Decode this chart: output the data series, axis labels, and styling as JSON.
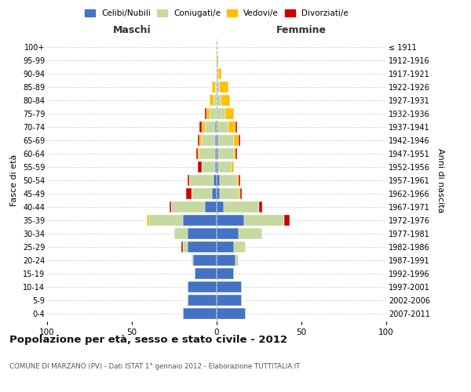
{
  "age_groups": [
    "0-4",
    "5-9",
    "10-14",
    "15-19",
    "20-24",
    "25-29",
    "30-34",
    "35-39",
    "40-44",
    "45-49",
    "50-54",
    "55-59",
    "60-64",
    "65-69",
    "70-74",
    "75-79",
    "80-84",
    "85-89",
    "90-94",
    "95-99",
    "100+"
  ],
  "birth_years": [
    "2007-2011",
    "2002-2006",
    "1997-2001",
    "1992-1996",
    "1987-1991",
    "1982-1986",
    "1977-1981",
    "1972-1976",
    "1967-1971",
    "1962-1966",
    "1957-1961",
    "1952-1956",
    "1947-1951",
    "1942-1946",
    "1937-1941",
    "1932-1936",
    "1927-1931",
    "1922-1926",
    "1917-1921",
    "1912-1916",
    "≤ 1911"
  ],
  "maschi": {
    "celibi": [
      20,
      17,
      17,
      13,
      14,
      17,
      17,
      20,
      7,
      3,
      2,
      1,
      1,
      1,
      1,
      0,
      0,
      0,
      0,
      0,
      0
    ],
    "coniugati": [
      0,
      0,
      0,
      0,
      1,
      3,
      8,
      20,
      20,
      12,
      14,
      8,
      9,
      8,
      6,
      4,
      2,
      1,
      0,
      0,
      0
    ],
    "vedovi": [
      0,
      0,
      0,
      0,
      0,
      0,
      0,
      1,
      0,
      0,
      0,
      0,
      1,
      1,
      2,
      2,
      2,
      2,
      0,
      0,
      0
    ],
    "divorziati": [
      0,
      0,
      0,
      0,
      0,
      1,
      0,
      0,
      1,
      3,
      1,
      2,
      1,
      1,
      1,
      1,
      0,
      0,
      0,
      0,
      0
    ]
  },
  "femmine": {
    "nubili": [
      17,
      15,
      15,
      10,
      11,
      10,
      13,
      16,
      4,
      2,
      2,
      1,
      1,
      1,
      0,
      0,
      0,
      0,
      0,
      0,
      0
    ],
    "coniugate": [
      0,
      0,
      0,
      0,
      2,
      7,
      14,
      24,
      21,
      11,
      10,
      8,
      9,
      9,
      7,
      5,
      3,
      2,
      1,
      0,
      0
    ],
    "vedove": [
      0,
      0,
      0,
      0,
      0,
      0,
      0,
      0,
      0,
      1,
      1,
      1,
      1,
      3,
      4,
      5,
      5,
      5,
      2,
      1,
      0
    ],
    "divorziate": [
      0,
      0,
      0,
      0,
      0,
      0,
      0,
      3,
      2,
      1,
      1,
      0,
      1,
      1,
      1,
      0,
      0,
      0,
      0,
      0,
      0
    ]
  },
  "colors": {
    "celibi": "#4472c4",
    "coniugati": "#c5d9a0",
    "vedovi": "#ffc000",
    "divorziati": "#cc0000"
  },
  "xlim": 100,
  "title": "Popolazione per età, sesso e stato civile - 2012",
  "subtitle": "COMUNE DI MARZANO (PV) - Dati ISTAT 1° gennaio 2012 - Elaborazione TUTTITALIA.IT",
  "ylabel_left": "Fasce di età",
  "ylabel_right": "Anni di nascita",
  "xlabel_left": "Maschi",
  "xlabel_right": "Femmine",
  "background_color": "#ffffff",
  "grid_color": "#cccccc"
}
